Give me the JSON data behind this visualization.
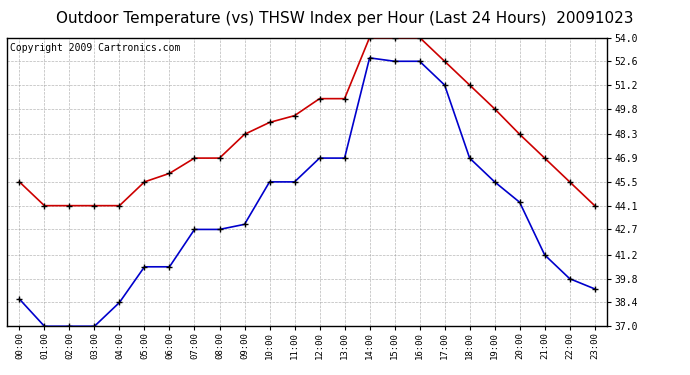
{
  "title": "Outdoor Temperature (vs) THSW Index per Hour (Last 24 Hours)  20091023",
  "copyright_text": "Copyright 2009 Cartronics.com",
  "hours": [
    "00:00",
    "01:00",
    "02:00",
    "03:00",
    "04:00",
    "05:00",
    "06:00",
    "07:00",
    "08:00",
    "09:00",
    "10:00",
    "11:00",
    "12:00",
    "13:00",
    "14:00",
    "15:00",
    "16:00",
    "17:00",
    "18:00",
    "19:00",
    "20:00",
    "21:00",
    "22:00",
    "23:00"
  ],
  "temp_data": [
    38.6,
    37.0,
    37.0,
    37.0,
    38.4,
    40.5,
    40.5,
    42.7,
    42.7,
    43.0,
    45.5,
    45.5,
    46.9,
    46.9,
    52.8,
    52.6,
    52.6,
    51.2,
    46.9,
    45.5,
    44.3,
    41.2,
    39.8,
    39.2
  ],
  "thsw_data": [
    45.5,
    44.1,
    44.1,
    44.1,
    44.1,
    45.5,
    46.0,
    46.9,
    46.9,
    48.3,
    49.0,
    49.4,
    50.4,
    50.4,
    54.0,
    54.0,
    54.0,
    52.6,
    51.2,
    49.8,
    48.3,
    46.9,
    45.5,
    44.1
  ],
  "temp_color": "#0000cc",
  "thsw_color": "#cc0000",
  "ylim_min": 37.0,
  "ylim_max": 54.0,
  "yticks": [
    37.0,
    38.4,
    39.8,
    41.2,
    42.7,
    44.1,
    45.5,
    46.9,
    48.3,
    49.8,
    51.2,
    52.6,
    54.0
  ],
  "background_color": "#ffffff",
  "plot_bg_color": "#ffffff",
  "grid_color": "#999999",
  "title_fontsize": 11,
  "copyright_fontsize": 7,
  "marker": "+",
  "marker_color": "#000000",
  "marker_size": 5,
  "line_width": 1.2
}
